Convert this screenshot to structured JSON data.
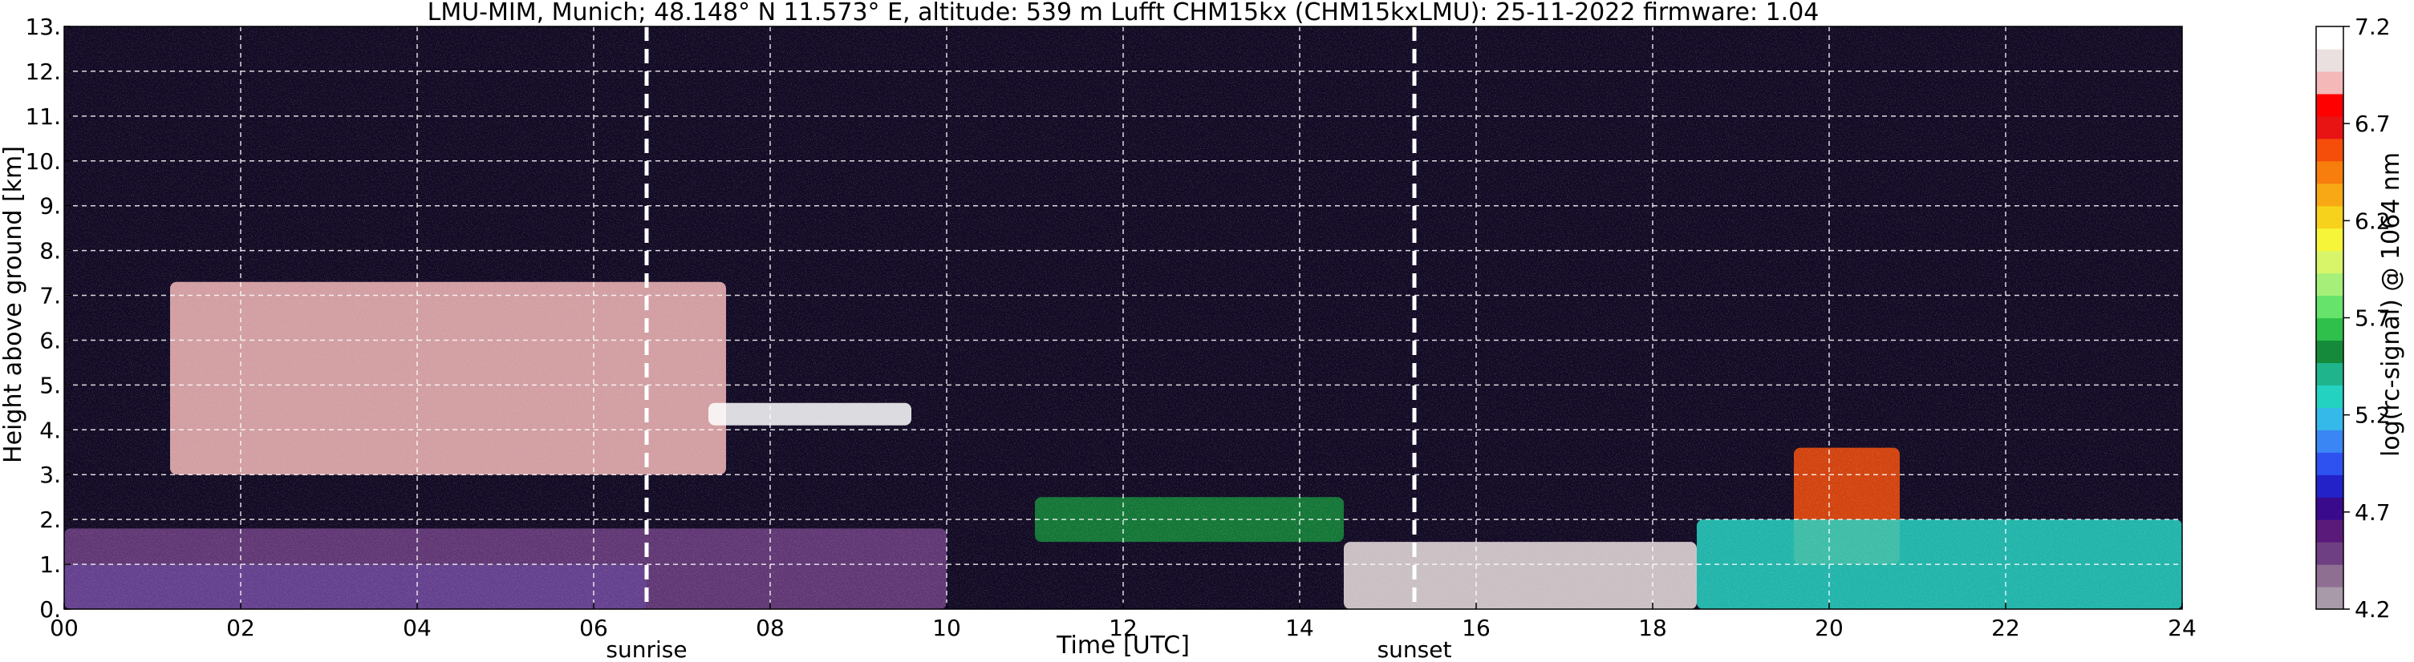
{
  "chart_data": {
    "type": "heatmap",
    "title": "LMU-MIM, Munich; 48.148° N 11.573° E, altitude: 539 m    Lufft CHM15kx (CHM15kxLMU): 25-11-2022    firmware: 1.04",
    "xlabel": "Time [UTC]",
    "ylabel": "Height above ground [km]",
    "xlim": [
      0,
      24
    ],
    "ylim": [
      0,
      13
    ],
    "x_ticks": [
      0,
      2,
      4,
      6,
      8,
      10,
      12,
      14,
      16,
      18,
      20,
      22,
      24
    ],
    "x_tick_labels": [
      "00",
      "02",
      "04",
      "06",
      "08",
      "10",
      "12",
      "14",
      "16",
      "18",
      "20",
      "22",
      "24"
    ],
    "y_ticks": [
      0,
      1,
      2,
      3,
      4,
      5,
      6,
      7,
      8,
      9,
      10,
      11,
      12,
      13
    ],
    "y_tick_labels": [
      "0.",
      "1.",
      "2.",
      "3.",
      "4.",
      "5.",
      "6.",
      "7.",
      "8.",
      "9.",
      "10.",
      "11.",
      "12.",
      "13."
    ],
    "grid": true,
    "annotations": [
      {
        "text": "sunrise",
        "x": 6.6
      },
      {
        "text": "sunset",
        "x": 15.3
      }
    ],
    "colorbar": {
      "label": "log(rc-signal) @ 1064 nm",
      "range": [
        4.2,
        7.2
      ],
      "ticks": [
        4.2,
        4.7,
        5.2,
        5.7,
        6.2,
        6.7,
        7.2
      ],
      "tick_labels": [
        "4.2",
        "4.7",
        "5.2",
        "5.7",
        "6.2",
        "6.7",
        "7.2"
      ],
      "colors": [
        "#a89aa8",
        "#8e6f92",
        "#6e3f82",
        "#5a1a7a",
        "#3a0a8c",
        "#2222c8",
        "#2e52f0",
        "#3a86f5",
        "#35b9e8",
        "#24d2c2",
        "#20b48c",
        "#148a3a",
        "#2ec04a",
        "#66e36a",
        "#a6f07a",
        "#d8f56a",
        "#f7f53a",
        "#f7d21c",
        "#f7a814",
        "#f77e0c",
        "#f54e0a",
        "#e81414",
        "#ff0000",
        "#f4b8b8",
        "#ebe0e0",
        "#ffffff"
      ]
    },
    "background_layers": [
      {
        "name": "clear-sky",
        "x": [
          0,
          24
        ],
        "y": [
          0,
          13
        ],
        "level": 4.2
      }
    ],
    "features": [
      {
        "name": "boundary-layer-blue",
        "x": [
          0,
          6.6
        ],
        "y": [
          0,
          1.0
        ],
        "level": 4.9
      },
      {
        "name": "residual-layer-purple",
        "x": [
          0,
          10.0
        ],
        "y": [
          0,
          1.8
        ],
        "level": 4.5
      },
      {
        "name": "mid-level-cloud-morning",
        "x": [
          1.2,
          7.5
        ],
        "y": [
          3.0,
          7.3
        ],
        "level": 6.9
      },
      {
        "name": "altostratus-thin",
        "x": [
          7.3,
          9.6
        ],
        "y": [
          4.1,
          4.6
        ],
        "level": 7.1
      },
      {
        "name": "stratocumulus-afternoon",
        "x": [
          11.0,
          14.5
        ],
        "y": [
          1.5,
          2.5
        ],
        "level": 5.5
      },
      {
        "name": "low-cloud-evening",
        "x": [
          14.5,
          18.5
        ],
        "y": [
          0,
          1.5
        ],
        "level": 7.0
      },
      {
        "name": "cloud-20h",
        "x": [
          19.6,
          20.8
        ],
        "y": [
          1.0,
          3.6
        ],
        "level": 6.6
      },
      {
        "name": "boundary-layer-night",
        "x": [
          18.5,
          24.0
        ],
        "y": [
          0,
          2.0
        ],
        "level": 5.3
      }
    ]
  }
}
